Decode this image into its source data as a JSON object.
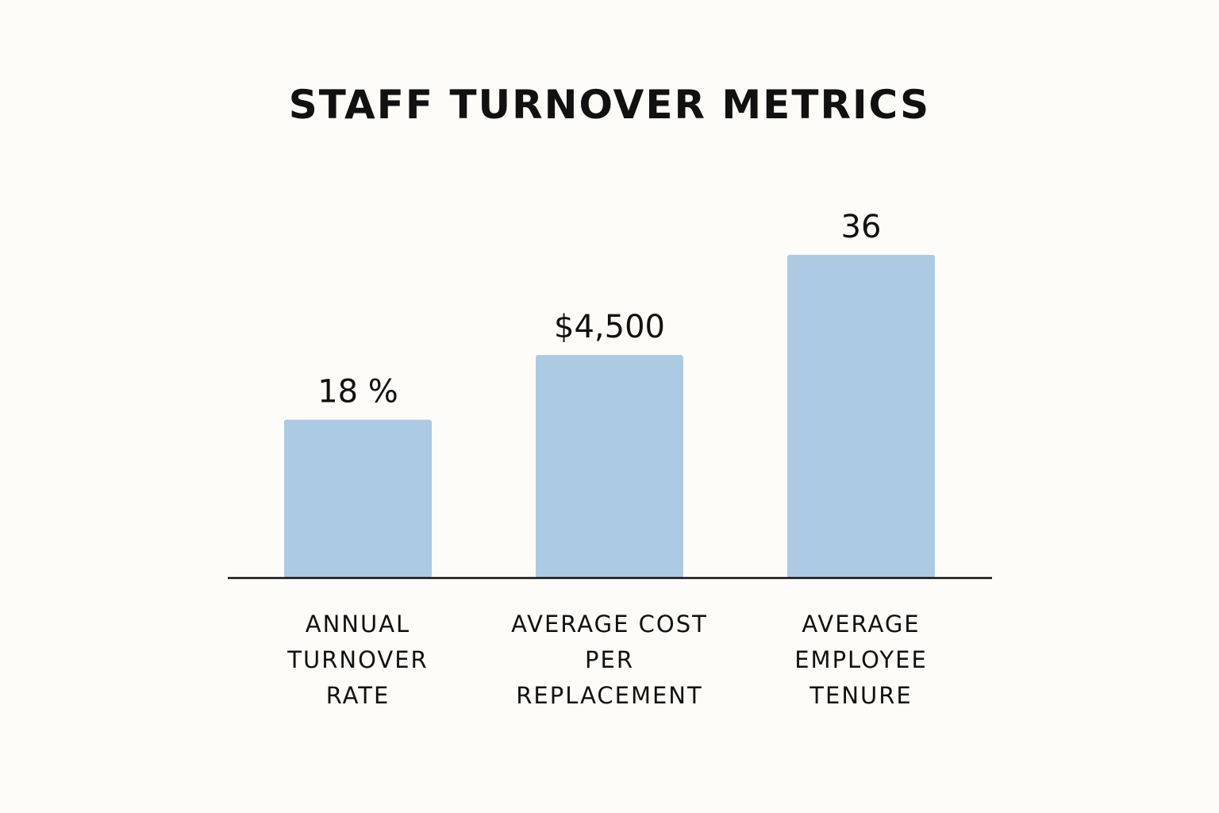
{
  "chart_data": {
    "type": "bar",
    "title": "STAFF TURNOVER METRICS",
    "xlabel": "",
    "ylabel": "",
    "grid": false,
    "legend": "none",
    "bar_color": "#abcbe3",
    "axis_color": "#111111",
    "categories": [
      [
        "ANNUAL",
        "TURNOVER",
        "RATE"
      ],
      [
        "AVERAGE COST",
        "PER",
        "REPLACEMENT"
      ],
      [
        "AVERAGE",
        "EMPLOYEE",
        "TENURE"
      ]
    ],
    "value_labels": [
      "18 %",
      "$4,500",
      "36"
    ],
    "relative_heights": [
      0.49,
      0.69,
      1.0
    ]
  }
}
